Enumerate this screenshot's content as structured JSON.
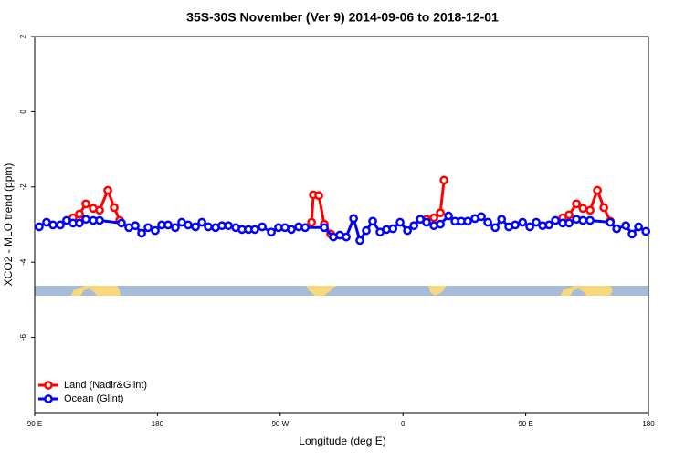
{
  "chart_data": {
    "type": "line",
    "title": "35S-30S November (Ver 9)   2014-09-06 to 2018-12-01",
    "x_label": "Longitude (deg E)",
    "y_label": "XCO2 - MLO trend (ppm)",
    "xlim": [
      90,
      540
    ],
    "xticks": [
      {
        "value": 90,
        "label": "90 E"
      },
      180,
      {
        "value": 270,
        "label": "90 W"
      },
      {
        "value": 360,
        "label": "0"
      },
      {
        "value": 450,
        "label": "90 E"
      },
      {
        "value": 540,
        "label": "180"
      }
    ],
    "ylim": [
      -8,
      2
    ],
    "yticks": [
      2,
      0,
      -2,
      -4,
      -6
    ],
    "legend": "bottom-left",
    "series": [
      {
        "name": "Land (Nadir&Glint)",
        "color": "#ff0000",
        "x": [
          118.1,
          122.8,
          127.5,
          132.9,
          137.6,
          143.6,
          148.3,
          152.3,
          null,
          293.0,
          294.3,
          298.3,
          302.3,
          307.0,
          null,
          377.3,
          382.7,
          387.4,
          390.1,
          null,
          477.1,
          481.8,
          487.2,
          491.9,
          497.2,
          502.6,
          507.3,
          512.0
        ],
        "values": [
          -2.82,
          -2.72,
          -2.45,
          -2.57,
          -2.62,
          -2.09,
          -2.55,
          -2.89,
          null,
          -2.94,
          -2.21,
          -2.23,
          -2.99,
          -3.25,
          null,
          -2.86,
          -2.82,
          -2.69,
          -1.82,
          null,
          -2.82,
          -2.74,
          -2.45,
          -2.57,
          -2.62,
          -2.09,
          -2.55,
          -2.91
        ]
      },
      {
        "name": "Ocean (Glint)",
        "color": "#0000ff",
        "x": [
          93.3,
          98.7,
          103.4,
          108.8,
          113.4,
          118.1,
          122.8,
          127.5,
          132.9,
          137.6,
          153.6,
          159.0,
          163.7,
          168.4,
          173.1,
          178.4,
          183.1,
          187.8,
          193.1,
          197.8,
          202.5,
          207.9,
          212.6,
          217.3,
          222.6,
          227.3,
          232.0,
          237.4,
          242.0,
          246.7,
          251.4,
          256.8,
          263.5,
          268.8,
          273.5,
          278.2,
          283.6,
          288.3,
          302.3,
          309.0,
          313.7,
          318.4,
          323.8,
          328.4,
          333.1,
          337.8,
          343.2,
          347.9,
          352.6,
          357.9,
          363.3,
          368.0,
          372.7,
          377.3,
          382.7,
          387.4,
          393.4,
          398.1,
          402.8,
          407.5,
          412.8,
          417.5,
          422.2,
          427.6,
          432.3,
          437.6,
          442.3,
          447.7,
          453.0,
          457.7,
          462.4,
          467.1,
          471.8,
          477.1,
          481.8,
          487.2,
          491.9,
          497.2,
          512.0,
          516.7,
          523.4,
          528.0,
          532.7,
          538.1
        ],
        "values": [
          -3.06,
          -2.94,
          -3.01,
          -3.01,
          -2.89,
          -2.96,
          -2.96,
          -2.86,
          -2.89,
          -2.89,
          -2.96,
          -3.08,
          -3.03,
          -3.23,
          -3.08,
          -3.16,
          -3.01,
          -3.01,
          -3.08,
          -2.94,
          -3.01,
          -3.06,
          -2.94,
          -3.06,
          -3.08,
          -3.03,
          -3.03,
          -3.08,
          -3.13,
          -3.13,
          -3.13,
          -3.06,
          -3.2,
          -3.08,
          -3.08,
          -3.13,
          -3.06,
          -3.08,
          -3.08,
          -3.33,
          -3.28,
          -3.33,
          -2.84,
          -3.42,
          -3.16,
          -2.91,
          -3.2,
          -3.13,
          -3.11,
          -2.94,
          -3.16,
          -3.03,
          -2.86,
          -2.94,
          -3.03,
          -2.99,
          -2.77,
          -2.91,
          -2.91,
          -2.91,
          -2.84,
          -2.79,
          -2.94,
          -3.08,
          -2.86,
          -3.06,
          -3.01,
          -2.94,
          -3.06,
          -2.94,
          -3.03,
          -3.01,
          -2.89,
          -2.96,
          -2.96,
          -2.86,
          -2.89,
          -2.89,
          -2.94,
          -3.11,
          -3.03,
          -3.25,
          -3.06,
          -3.18
        ]
      }
    ]
  }
}
